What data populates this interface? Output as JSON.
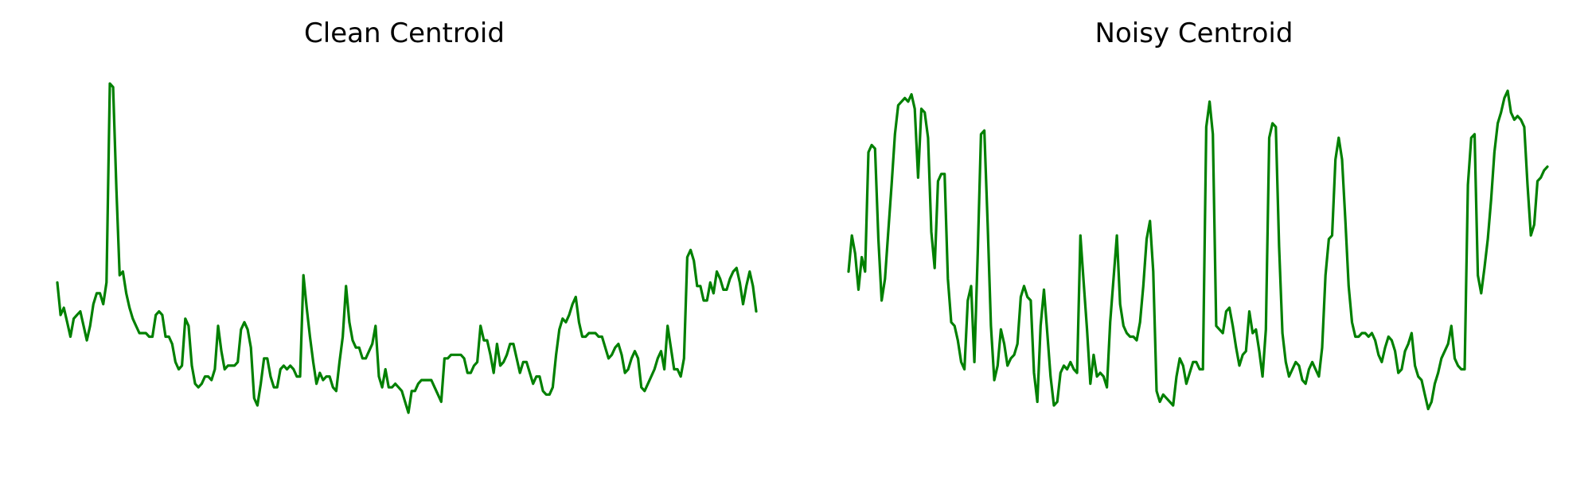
{
  "chart_data": [
    {
      "type": "line",
      "title": "Clean Centroid",
      "xlabel": "",
      "ylabel": "",
      "grid": false,
      "axes_visible": false,
      "line_color": "#008000",
      "ylim": [
        0,
        1.02
      ],
      "series": [
        {
          "values": [
            0.45,
            0.36,
            0.38,
            0.34,
            0.3,
            0.35,
            0.36,
            0.37,
            0.33,
            0.29,
            0.33,
            0.39,
            0.42,
            0.42,
            0.39,
            0.45,
            1.0,
            0.99,
            0.71,
            0.47,
            0.48,
            0.42,
            0.38,
            0.35,
            0.33,
            0.31,
            0.31,
            0.31,
            0.3,
            0.3,
            0.36,
            0.37,
            0.36,
            0.3,
            0.3,
            0.28,
            0.23,
            0.21,
            0.22,
            0.35,
            0.33,
            0.22,
            0.17,
            0.16,
            0.17,
            0.19,
            0.19,
            0.18,
            0.21,
            0.33,
            0.26,
            0.21,
            0.22,
            0.22,
            0.22,
            0.23,
            0.32,
            0.34,
            0.32,
            0.27,
            0.13,
            0.11,
            0.17,
            0.24,
            0.24,
            0.19,
            0.16,
            0.16,
            0.21,
            0.22,
            0.21,
            0.22,
            0.21,
            0.19,
            0.19,
            0.47,
            0.38,
            0.3,
            0.23,
            0.17,
            0.2,
            0.18,
            0.19,
            0.19,
            0.16,
            0.15,
            0.23,
            0.3,
            0.44,
            0.34,
            0.29,
            0.27,
            0.27,
            0.24,
            0.24,
            0.26,
            0.28,
            0.33,
            0.19,
            0.16,
            0.21,
            0.16,
            0.16,
            0.17,
            0.16,
            0.15,
            0.12,
            0.09,
            0.15,
            0.15,
            0.17,
            0.18,
            0.18,
            0.18,
            0.18,
            0.16,
            0.14,
            0.12,
            0.24,
            0.24,
            0.25,
            0.25,
            0.25,
            0.25,
            0.24,
            0.2,
            0.2,
            0.22,
            0.23,
            0.33,
            0.29,
            0.29,
            0.25,
            0.2,
            0.28,
            0.22,
            0.23,
            0.25,
            0.28,
            0.28,
            0.24,
            0.2,
            0.23,
            0.23,
            0.2,
            0.17,
            0.19,
            0.19,
            0.15,
            0.14,
            0.14,
            0.16,
            0.25,
            0.32,
            0.35,
            0.34,
            0.36,
            0.39,
            0.41,
            0.34,
            0.3,
            0.3,
            0.31,
            0.31,
            0.31,
            0.3,
            0.3,
            0.27,
            0.24,
            0.25,
            0.27,
            0.28,
            0.25,
            0.2,
            0.21,
            0.24,
            0.26,
            0.24,
            0.16,
            0.15,
            0.17,
            0.19,
            0.21,
            0.24,
            0.26,
            0.21,
            0.33,
            0.27,
            0.21,
            0.21,
            0.19,
            0.24,
            0.52,
            0.54,
            0.51,
            0.44,
            0.44,
            0.4,
            0.4,
            0.45,
            0.42,
            0.48,
            0.46,
            0.43,
            0.43,
            0.46,
            0.48,
            0.49,
            0.45,
            0.39,
            0.44,
            0.48,
            0.44,
            0.37
          ]
        }
      ]
    },
    {
      "type": "line",
      "title": "Noisy Centroid",
      "xlabel": "",
      "ylabel": "",
      "grid": false,
      "axes_visible": false,
      "line_color": "#008000",
      "ylim": [
        0,
        1.02
      ],
      "series": [
        {
          "values": [
            0.48,
            0.58,
            0.53,
            0.43,
            0.52,
            0.48,
            0.81,
            0.83,
            0.82,
            0.57,
            0.4,
            0.46,
            0.59,
            0.72,
            0.86,
            0.94,
            0.95,
            0.96,
            0.95,
            0.97,
            0.93,
            0.74,
            0.93,
            0.92,
            0.85,
            0.59,
            0.49,
            0.73,
            0.75,
            0.75,
            0.46,
            0.34,
            0.33,
            0.29,
            0.23,
            0.21,
            0.4,
            0.44,
            0.23,
            0.53,
            0.86,
            0.87,
            0.61,
            0.33,
            0.18,
            0.22,
            0.32,
            0.28,
            0.22,
            0.24,
            0.25,
            0.28,
            0.41,
            0.44,
            0.41,
            0.4,
            0.2,
            0.12,
            0.33,
            0.43,
            0.31,
            0.19,
            0.11,
            0.12,
            0.2,
            0.22,
            0.21,
            0.23,
            0.21,
            0.2,
            0.58,
            0.45,
            0.32,
            0.17,
            0.25,
            0.19,
            0.2,
            0.19,
            0.16,
            0.34,
            0.46,
            0.58,
            0.39,
            0.33,
            0.31,
            0.3,
            0.3,
            0.29,
            0.34,
            0.44,
            0.57,
            0.62,
            0.48,
            0.15,
            0.12,
            0.14,
            0.13,
            0.12,
            0.11,
            0.19,
            0.24,
            0.22,
            0.17,
            0.2,
            0.23,
            0.23,
            0.21,
            0.21,
            0.88,
            0.95,
            0.86,
            0.33,
            0.32,
            0.31,
            0.37,
            0.38,
            0.33,
            0.27,
            0.22,
            0.25,
            0.26,
            0.37,
            0.31,
            0.32,
            0.26,
            0.19,
            0.32,
            0.85,
            0.89,
            0.88,
            0.55,
            0.31,
            0.23,
            0.19,
            0.21,
            0.23,
            0.22,
            0.18,
            0.17,
            0.21,
            0.23,
            0.21,
            0.19,
            0.27,
            0.47,
            0.57,
            0.58,
            0.79,
            0.85,
            0.79,
            0.62,
            0.44,
            0.34,
            0.3,
            0.3,
            0.31,
            0.31,
            0.3,
            0.31,
            0.29,
            0.25,
            0.23,
            0.27,
            0.3,
            0.29,
            0.26,
            0.2,
            0.21,
            0.26,
            0.28,
            0.31,
            0.22,
            0.19,
            0.18,
            0.14,
            0.1,
            0.12,
            0.17,
            0.2,
            0.24,
            0.26,
            0.28,
            0.33,
            0.24,
            0.22,
            0.21,
            0.21,
            0.72,
            0.85,
            0.86,
            0.47,
            0.42,
            0.49,
            0.57,
            0.68,
            0.81,
            0.89,
            0.92,
            0.96,
            0.98,
            0.92,
            0.9,
            0.91,
            0.9,
            0.88,
            0.72,
            0.58,
            0.61,
            0.73,
            0.74,
            0.76,
            0.77
          ]
        }
      ]
    }
  ]
}
